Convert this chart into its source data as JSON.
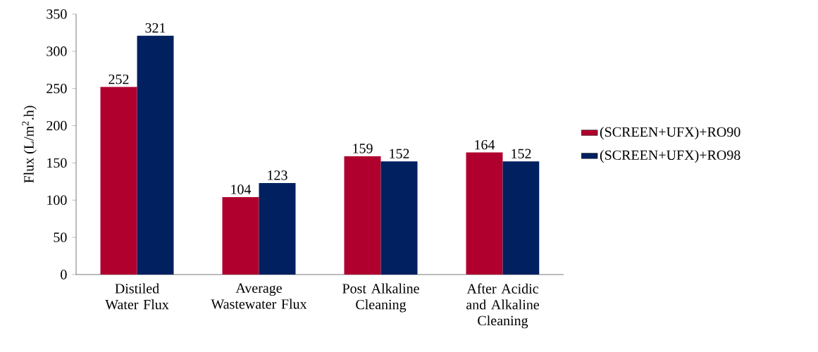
{
  "chart_data": {
    "type": "bar",
    "ylabel": "Flux (L/m$^{2}$.h)",
    "categories": [
      "Distiled Water Flux",
      "Average Wastewater Flux",
      "Post Alkaline Cleaning",
      "After Acidic and Alkaline Cleaning"
    ],
    "series": [
      {
        "name": "(SCREEN+UFX)+RO90",
        "color": "#b0002e",
        "values": [
          252,
          104,
          159,
          164
        ]
      },
      {
        "name": "(SCREEN+UFX)+RO98",
        "color": "#002060",
        "values": [
          321,
          123,
          152,
          152
        ]
      }
    ],
    "ylim": [
      0,
      350
    ],
    "yticks": [
      0,
      50,
      100,
      150,
      200,
      250,
      300,
      350
    ],
    "data_labels": true,
    "grid": false,
    "legend": "right"
  }
}
